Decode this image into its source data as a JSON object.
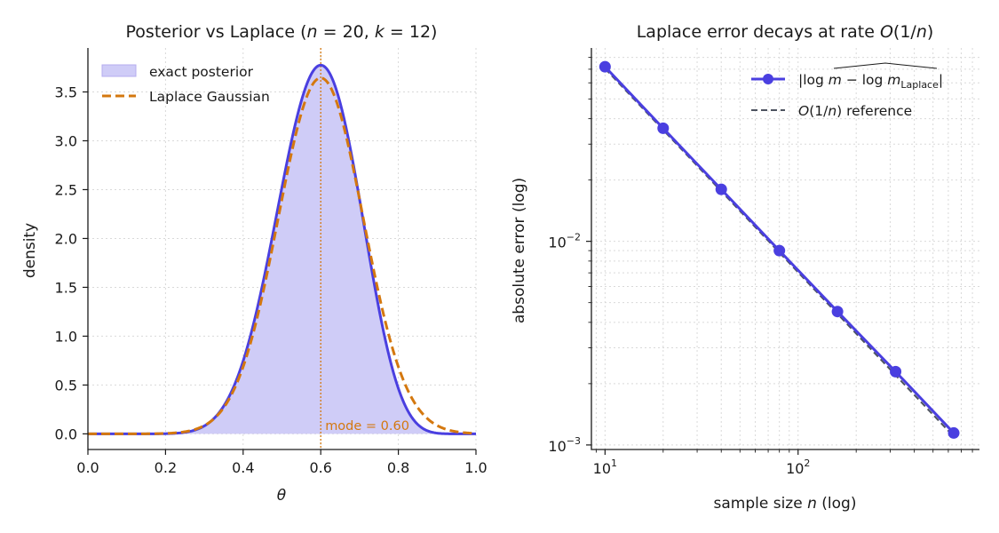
{
  "chart_data": [
    {
      "type": "area",
      "title": "Posterior vs Laplace  (n = 20, k = 12)",
      "xlabel": "θ",
      "ylabel": "density",
      "xlim": [
        0.0,
        1.0
      ],
      "ylim": [
        -0.16,
        3.95
      ],
      "grid": true,
      "legend_position": "upper-left",
      "x_ticks": [
        "0.0",
        "0.2",
        "0.4",
        "0.6",
        "0.8",
        "1.0"
      ],
      "y_ticks": [
        "0.0",
        "0.5",
        "1.0",
        "1.5",
        "2.0",
        "2.5",
        "3.0",
        "3.5"
      ],
      "series": [
        {
          "name": "exact posterior",
          "kind": "filled line",
          "distribution": "Beta",
          "alpha": 13,
          "beta": 9,
          "color": "#4a3fe0",
          "fill": "#cfccf7"
        },
        {
          "name": "Laplace Gaussian",
          "kind": "dashed line",
          "mean": 0.6,
          "sd": 0.1095,
          "color": "#d4780f"
        }
      ],
      "annotation": {
        "text": "mode = 0.60",
        "x": 0.6,
        "color": "#d4780f"
      }
    },
    {
      "type": "line",
      "title": "Laplace error decays at rate O(1/n)",
      "xlabel": "sample size n  (log)",
      "ylabel": "absolute error  (log)",
      "xscale": "log",
      "yscale": "log",
      "xlim": [
        8.5,
        870
      ],
      "ylim": [
        0.00095,
        0.089
      ],
      "grid": true,
      "legend_position": "upper-right",
      "x_ticks": [
        "10^1",
        "10^2"
      ],
      "y_ticks": [
        "10^-2",
        "10^-3"
      ],
      "series": [
        {
          "name": "|log m − log m̂_Laplace|",
          "kind": "line+markers",
          "color": "#4a3fe0",
          "x": [
            10,
            20,
            40,
            80,
            160,
            320,
            640
          ],
          "y": [
            0.072,
            0.0359,
            0.018,
            0.009,
            0.00452,
            0.00229,
            0.001145
          ]
        },
        {
          "name": "O(1/n) reference",
          "kind": "dashed line",
          "color": "#4d5360",
          "x": [
            10,
            640
          ],
          "y": [
            0.0705,
            0.0011
          ]
        }
      ]
    }
  ]
}
